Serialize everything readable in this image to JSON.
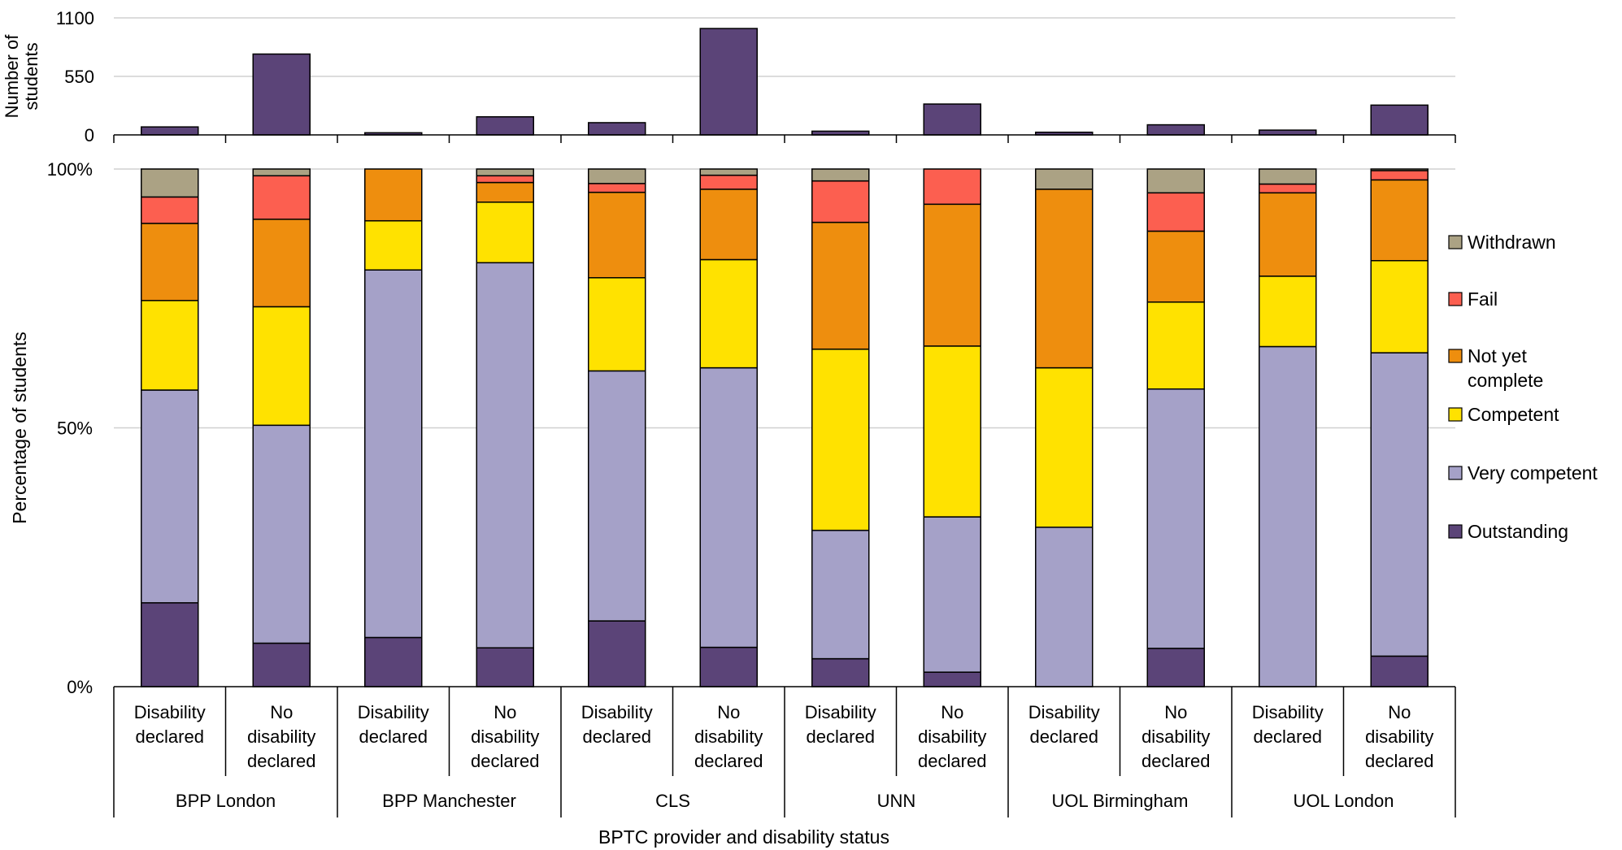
{
  "chart_data": {
    "type": "bar",
    "xlabel": "BPTC provider and  disability status",
    "colors": {
      "Outstanding": "#5b4478",
      "Very competent": "#a5a1c8",
      "Competent": "#ffe200",
      "Not yet complete": "#ee8e0e",
      "Fail": "#fc5f50",
      "Withdrawn": "#aba284"
    },
    "groups": [
      "BPP London",
      "BPP Manchester",
      "CLS",
      "UNN",
      "UOL Birmingham",
      "UOL London"
    ],
    "subcategories": [
      [
        "Disability",
        "declared"
      ],
      [
        "No",
        "disability",
        "declared"
      ]
    ],
    "top_panel": {
      "type": "bar",
      "ylabel_lines": [
        "Number of",
        "students"
      ],
      "ylim": [
        0,
        1100
      ],
      "yticks": [
        0,
        550,
        1100
      ],
      "ytick_labels": [
        "0",
        "550",
        "1100"
      ],
      "values": [
        75,
        760,
        20,
        170,
        115,
        1000,
        35,
        290,
        25,
        95,
        45,
        280
      ]
    },
    "bottom_panel": {
      "type": "bar",
      "stacked": true,
      "ylabel": "Percentage of students",
      "ylim": [
        0,
        100
      ],
      "yticks": [
        0,
        50,
        100
      ],
      "ytick_labels": [
        "0%",
        "50%",
        "100%"
      ],
      "legend_position": "right",
      "legend": [
        {
          "name": "Withdrawn",
          "label_lines": [
            "Withdrawn"
          ]
        },
        {
          "name": "Fail",
          "label_lines": [
            "Fail"
          ]
        },
        {
          "name": "Not yet complete",
          "label_lines": [
            "Not yet",
            "complete"
          ]
        },
        {
          "name": "Competent",
          "label_lines": [
            "Competent"
          ]
        },
        {
          "name": "Very competent",
          "label_lines": [
            "Very competent"
          ]
        },
        {
          "name": "Outstanding",
          "label_lines": [
            "Outstanding"
          ]
        }
      ],
      "series": [
        {
          "name": "Outstanding",
          "values": [
            16.2,
            8.4,
            9.5,
            7.5,
            12.7,
            7.6,
            5.4,
            2.8,
            0,
            7.4,
            0,
            5.9
          ]
        },
        {
          "name": "Very competent",
          "values": [
            41.1,
            42.1,
            71.0,
            74.4,
            48.3,
            54.0,
            24.8,
            30.0,
            30.8,
            50.1,
            65.7,
            58.6
          ]
        },
        {
          "name": "Competent",
          "values": [
            17.3,
            22.9,
            9.5,
            11.7,
            18.0,
            20.9,
            35.0,
            33.0,
            30.8,
            16.8,
            13.6,
            17.8
          ]
        },
        {
          "name": "Not yet complete",
          "values": [
            14.9,
            16.9,
            10.0,
            3.8,
            16.5,
            13.6,
            24.5,
            27.4,
            34.5,
            13.7,
            16.1,
            15.6
          ]
        },
        {
          "name": "Fail",
          "values": [
            5.1,
            8.4,
            0,
            1.3,
            1.7,
            2.7,
            8.0,
            6.8,
            0,
            7.4,
            1.7,
            1.8
          ]
        },
        {
          "name": "Withdrawn",
          "values": [
            5.4,
            1.3,
            0,
            1.3,
            2.8,
            1.2,
            2.3,
            0,
            3.9,
            4.6,
            2.9,
            0.3
          ]
        }
      ]
    }
  }
}
